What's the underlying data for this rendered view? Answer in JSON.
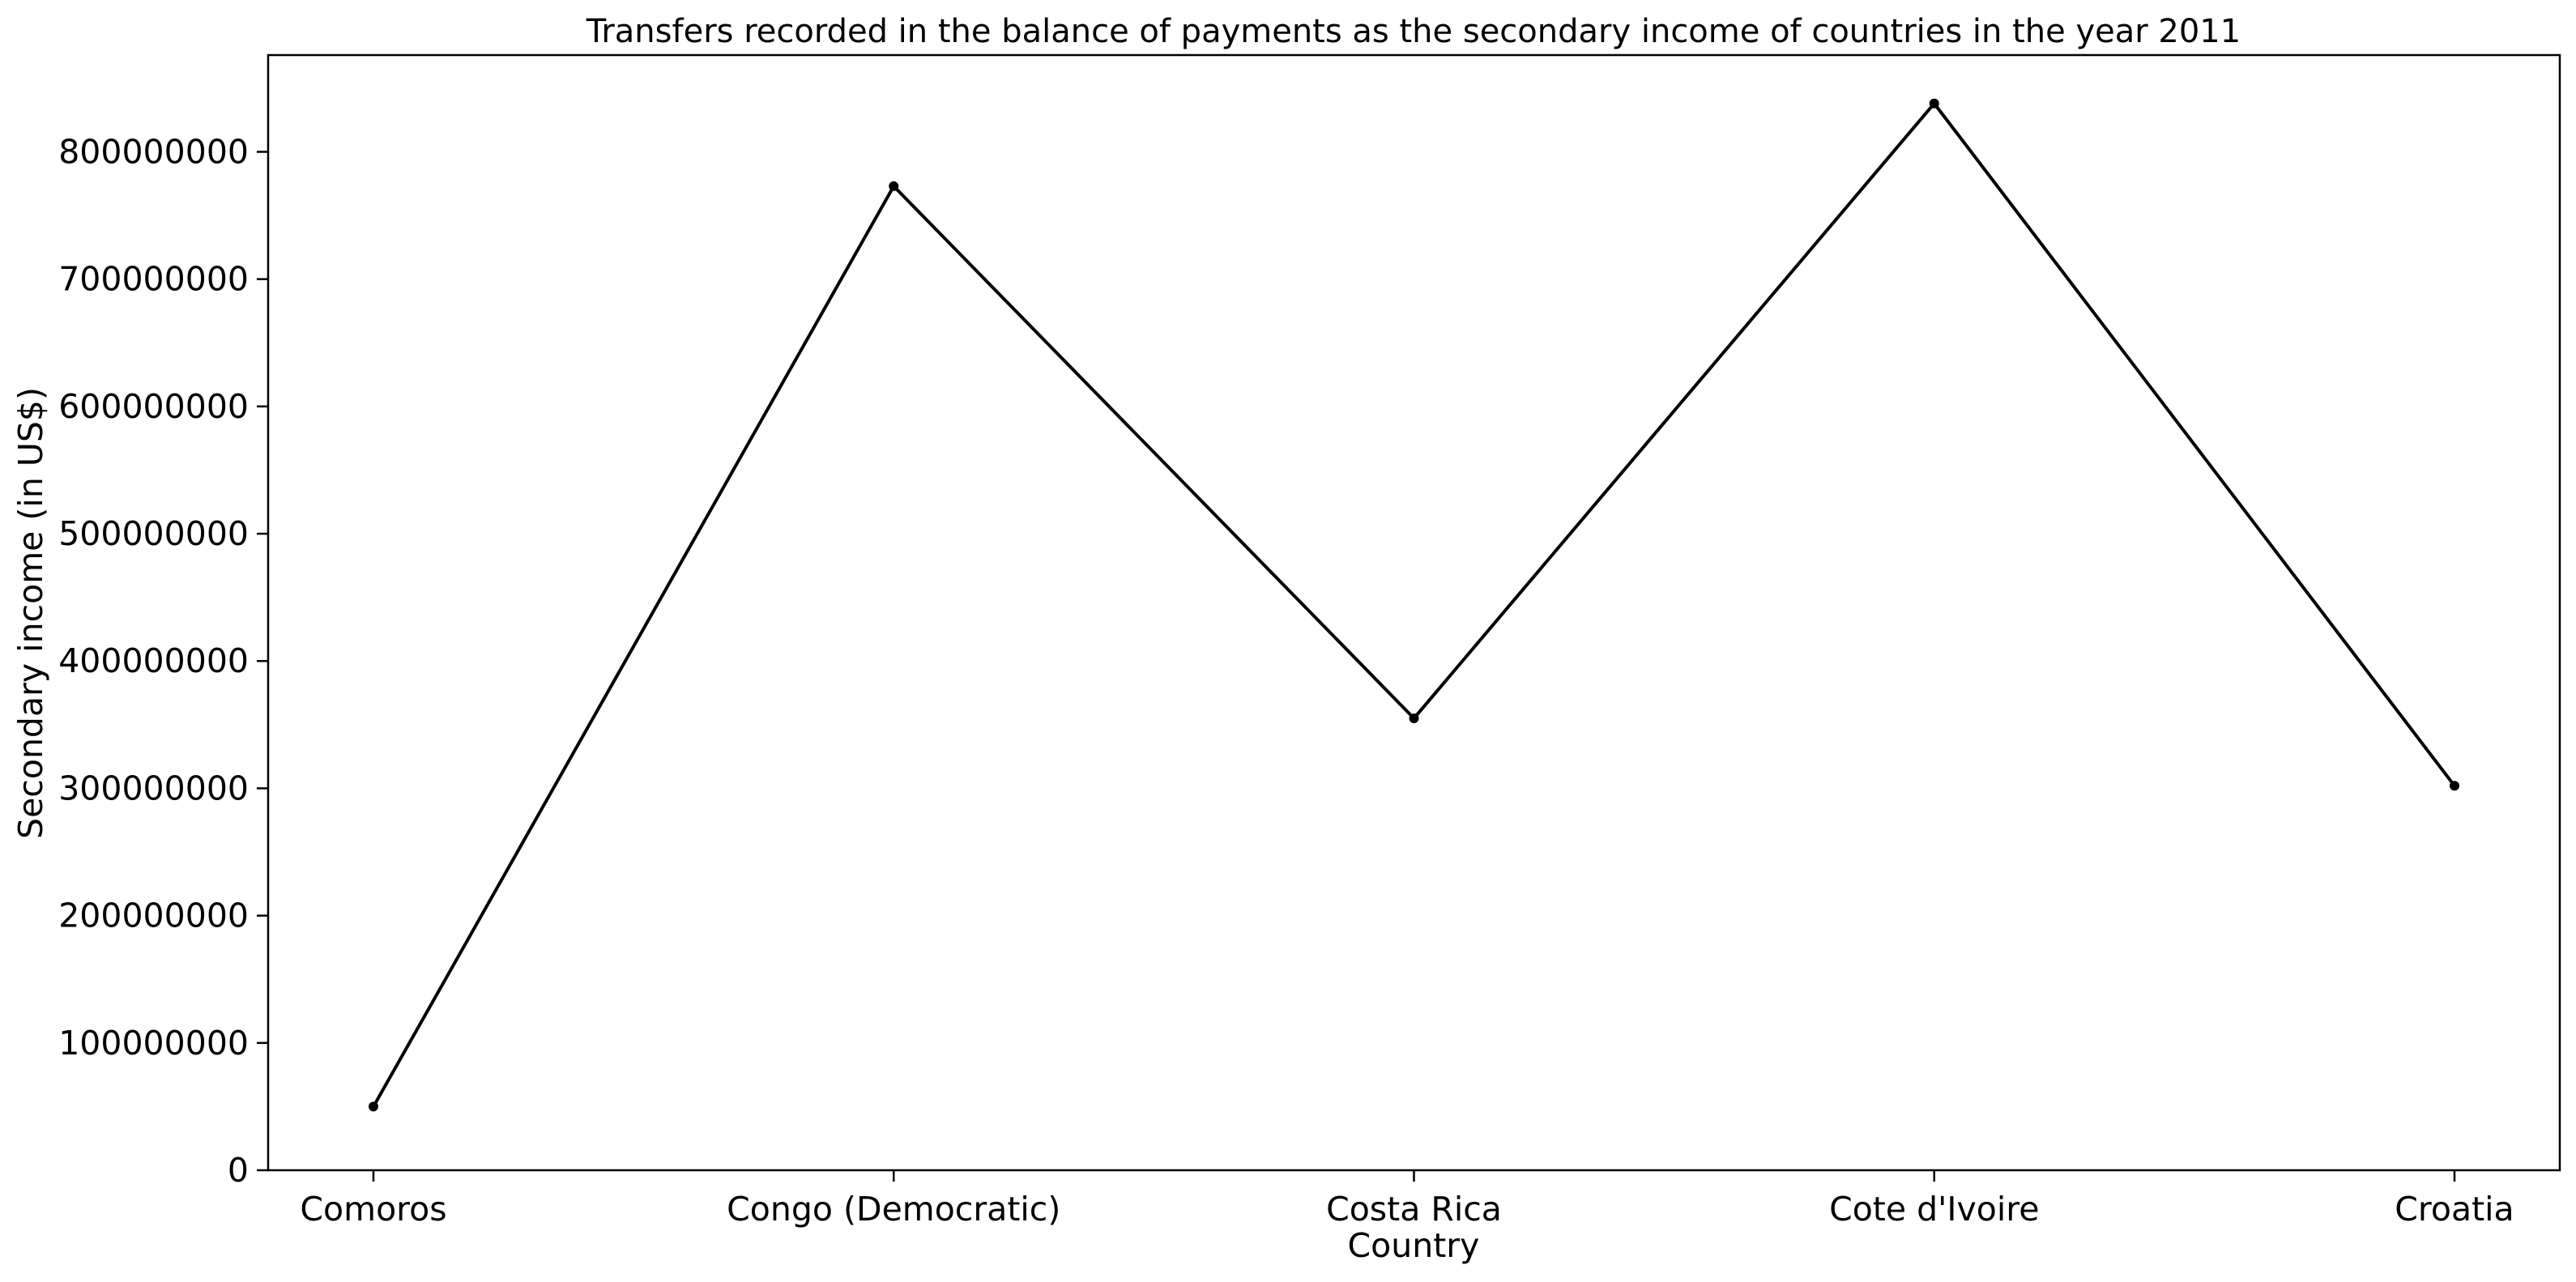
{
  "chart_data": {
    "type": "line",
    "title": "Transfers recorded in the balance of payments as the secondary income of countries in the year 2011",
    "xlabel": "Country",
    "ylabel": "Secondary income (in US$)",
    "categories": [
      "Comoros",
      "Congo (Democratic)",
      "Costa Rica",
      "Cote d'Ivoire",
      "Croatia"
    ],
    "series": [
      {
        "values": [
          50000000,
          773000000,
          355000000,
          838000000,
          302000000
        ],
        "color": "#000000"
      }
    ],
    "ylim": [
      0,
      876000000
    ],
    "yticks": [
      0,
      100000000,
      200000000,
      300000000,
      400000000,
      500000000,
      600000000,
      700000000,
      800000000
    ],
    "ytick_labels": [
      "0",
      "100000000",
      "200000000",
      "300000000",
      "400000000",
      "500000000",
      "600000000",
      "700000000",
      "800000000"
    ],
    "grid": false,
    "legend": "none"
  }
}
